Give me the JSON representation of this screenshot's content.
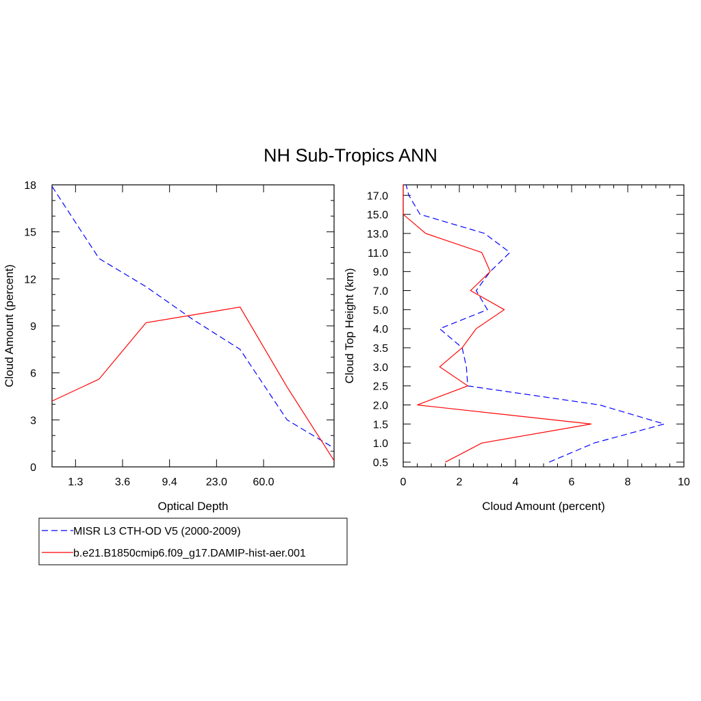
{
  "title": "NH Sub-Tropics ANN",
  "colors": {
    "misr": "#0000ff",
    "model": "#ff0000",
    "frame": "#000000"
  },
  "legend": [
    {
      "label": "MISR L3 CTH-OD V5 (2000-2009)",
      "color": "#0000ff",
      "dash": "dashed"
    },
    {
      "label": "b.e21.B1850cmip6.f09_g17.DAMIP-hist-aer.001",
      "color": "#ff0000",
      "dash": "solid"
    }
  ],
  "chart_data": [
    {
      "type": "line",
      "xlabel": "Optical Depth",
      "ylabel": "Cloud Amount (percent)",
      "x_tick_labels": [
        "1.3",
        "3.6",
        "9.4",
        "23.0",
        "60.0"
      ],
      "y_tick_labels": [
        "0",
        "3",
        "6",
        "9",
        "12",
        "15",
        "18"
      ],
      "ylim": [
        0,
        18
      ],
      "x_bin_count": 7,
      "series": [
        {
          "name": "MISR L3 CTH-OD V5 (2000-2009)",
          "values": [
            17.9,
            13.3,
            11.5,
            9.4,
            7.5,
            3.0,
            1.2
          ]
        },
        {
          "name": "b.e21.B1850cmip6.f09_g17.DAMIP-hist-aer.001",
          "values": [
            4.2,
            5.6,
            9.2,
            9.7,
            10.2,
            5.1,
            0.4
          ]
        }
      ]
    },
    {
      "type": "line",
      "xlabel": "Cloud Amount (percent)",
      "ylabel": "Cloud Top Height (km)",
      "x_tick_labels": [
        "0",
        "2",
        "4",
        "6",
        "8",
        "10"
      ],
      "xlim": [
        0,
        10
      ],
      "y_tick_labels": [
        "0.5",
        "1.0",
        "1.5",
        "2.0",
        "2.5",
        "3.0",
        "3.5",
        "4.0",
        "5.0",
        "7.0",
        "9.0",
        "11.0",
        "13.0",
        "15.0",
        "17.0"
      ],
      "y_level_count": 15,
      "series": [
        {
          "name": "MISR L3 CTH-OD V5 (2000-2009)",
          "values": [
            5.2,
            6.8,
            9.3,
            7.0,
            2.3,
            2.25,
            2.1,
            1.3,
            3.0,
            2.6,
            3.1,
            3.8,
            2.9,
            0.6,
            0.2
          ]
        },
        {
          "name": "b.e21.B1850cmip6.f09_g17.DAMIP-hist-aer.001",
          "values": [
            1.5,
            2.8,
            6.7,
            0.5,
            2.3,
            1.3,
            2.1,
            2.6,
            3.6,
            2.4,
            3.1,
            2.8,
            0.8,
            0.0,
            0.0
          ]
        }
      ]
    }
  ]
}
